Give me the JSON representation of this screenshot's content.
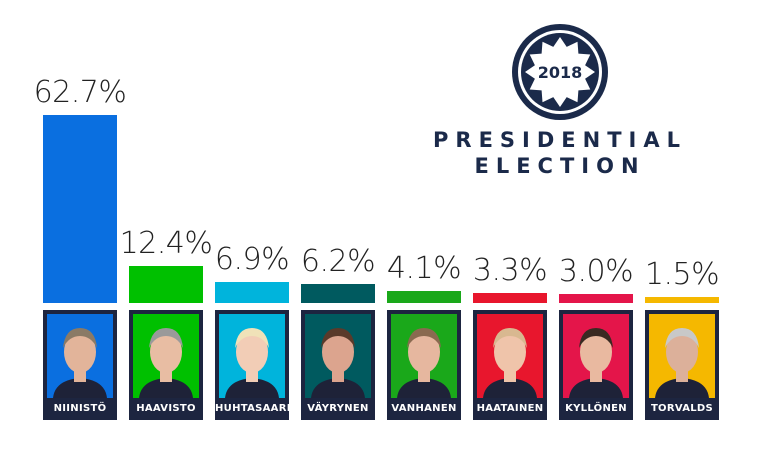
{
  "chart_data": {
    "type": "bar",
    "categories": [
      "NIINISTÖ",
      "HAAVISTO",
      "HUHTASAARI",
      "VÄYRYNEN",
      "VANHANEN",
      "HAATAINEN",
      "KYLLÖNEN",
      "TORVALDS"
    ],
    "values": [
      62.7,
      12.4,
      6.9,
      6.2,
      4.1,
      3.3,
      3.0,
      1.5
    ],
    "labels": [
      "62.7%",
      "12.4%",
      "6.9%",
      "6.2%",
      "4.1%",
      "3.3%",
      "3.0%",
      "1.5%"
    ],
    "colors": [
      "#0a6fe0",
      "#00c000",
      "#00b4dc",
      "#005a5f",
      "#1aa81a",
      "#e8162d",
      "#e4154a",
      "#f5b800"
    ],
    "ylim": [
      0,
      62.7
    ]
  },
  "logo": {
    "year": "2018",
    "line1": "PRESIDENTIAL",
    "line2": "ELECTION",
    "color": "#1b2a4a"
  }
}
